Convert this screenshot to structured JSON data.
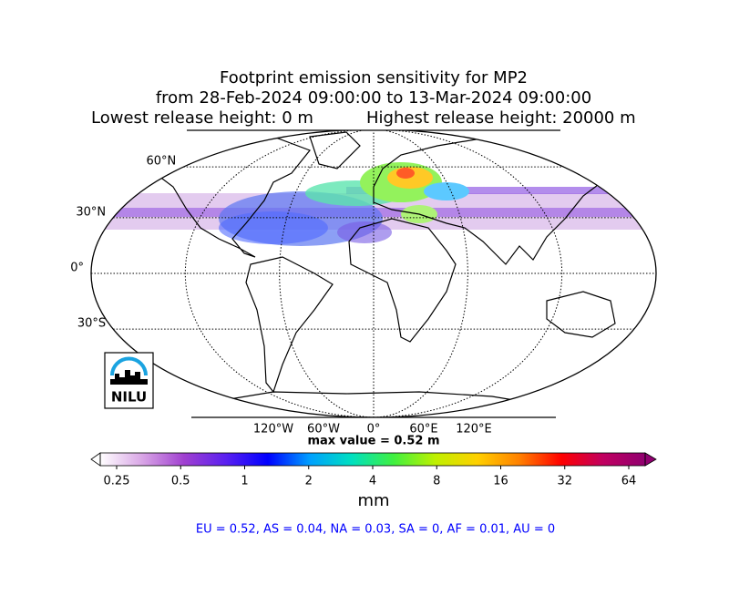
{
  "title_lines": [
    "Footprint emission sensitivity for MP2",
    "from 28-Feb-2024 09:00:00 to 13-Mar-2024 09:00:00"
  ],
  "release": {
    "lowest": "Lowest release height: 0 m",
    "highest": "Highest release height: 20000 m"
  },
  "map": {
    "lat_labels": [
      {
        "value": 60,
        "label": "60°N"
      },
      {
        "value": 30,
        "label": "30°N"
      },
      {
        "value": 0,
        "label": "0°"
      },
      {
        "value": -30,
        "label": "30°S"
      }
    ],
    "lon_labels": [
      {
        "value": -120,
        "label": "120°W"
      },
      {
        "value": -60,
        "label": "60°W"
      },
      {
        "value": 0,
        "label": "0°"
      },
      {
        "value": 60,
        "label": "60°E"
      },
      {
        "value": 120,
        "label": "120°E"
      }
    ],
    "logo": "NILU"
  },
  "max_value": "max value = 0.52 m",
  "colorbar": {
    "ticks": [
      0.25,
      0.5,
      1,
      2,
      4,
      8,
      16,
      32,
      64
    ],
    "colors": [
      "#ffffff",
      "#d9a6e6",
      "#a040d0",
      "#5a20f0",
      "#0000ff",
      "#00a0ff",
      "#00e0c0",
      "#40f040",
      "#c0f000",
      "#ffd000",
      "#ff8000",
      "#ff0000",
      "#c00060",
      "#900070"
    ],
    "unit": "mm"
  },
  "stats": "EU = 0.52,  AS = 0.04,  NA = 0.03,  SA = 0,  AF = 0.01,  AU = 0"
}
